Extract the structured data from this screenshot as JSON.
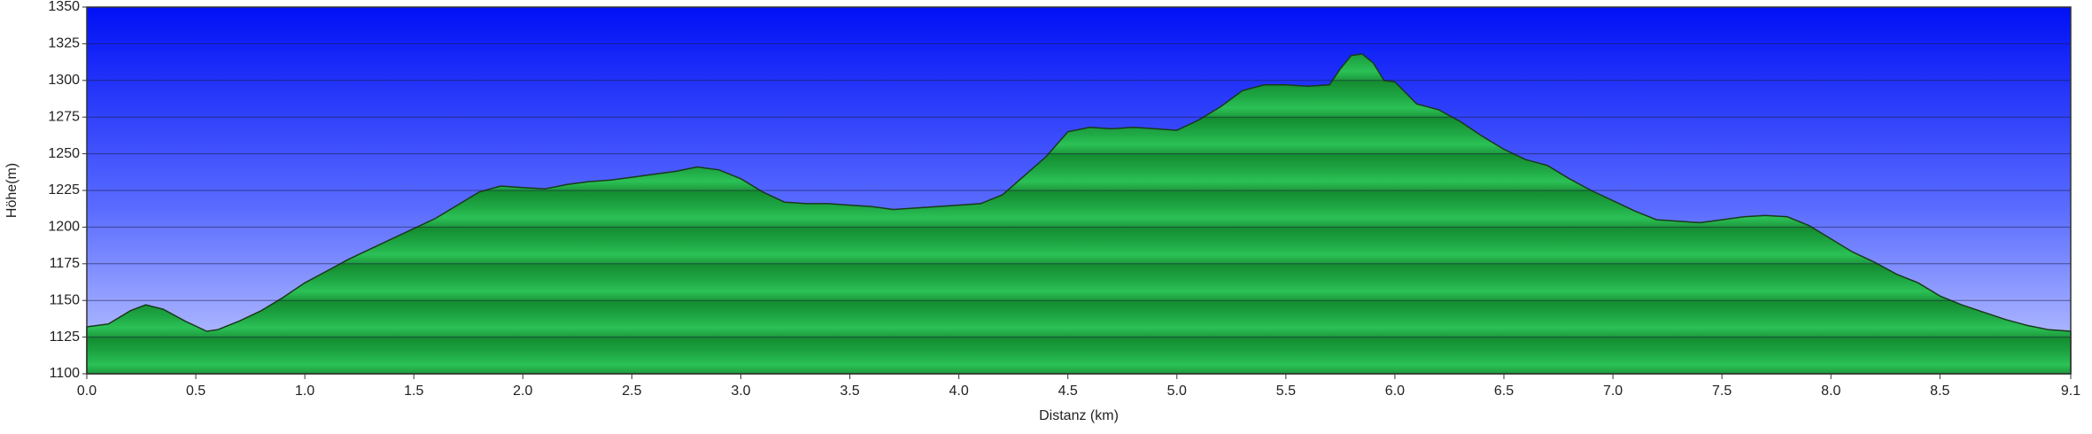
{
  "chart_data": {
    "type": "area",
    "x_label": "Distanz   (km)",
    "y_label": "Höhe(m)",
    "x": [
      0.0,
      0.1,
      0.2,
      0.27,
      0.35,
      0.45,
      0.55,
      0.6,
      0.7,
      0.8,
      0.9,
      1.0,
      1.1,
      1.2,
      1.3,
      1.4,
      1.5,
      1.6,
      1.7,
      1.8,
      1.9,
      2.0,
      2.1,
      2.2,
      2.3,
      2.4,
      2.5,
      2.6,
      2.7,
      2.8,
      2.9,
      3.0,
      3.1,
      3.2,
      3.3,
      3.4,
      3.5,
      3.6,
      3.7,
      3.8,
      3.9,
      4.0,
      4.1,
      4.2,
      4.3,
      4.4,
      4.5,
      4.6,
      4.7,
      4.8,
      4.9,
      5.0,
      5.1,
      5.2,
      5.3,
      5.4,
      5.5,
      5.6,
      5.7,
      5.75,
      5.8,
      5.85,
      5.9,
      5.95,
      6.0,
      6.1,
      6.2,
      6.3,
      6.4,
      6.5,
      6.6,
      6.7,
      6.8,
      6.9,
      7.0,
      7.1,
      7.2,
      7.3,
      7.4,
      7.5,
      7.6,
      7.7,
      7.8,
      7.9,
      8.0,
      8.1,
      8.2,
      8.3,
      8.4,
      8.5,
      8.6,
      8.7,
      8.8,
      8.9,
      9.0,
      9.1
    ],
    "values": [
      1132,
      1134,
      1143,
      1147,
      1144,
      1136,
      1129,
      1130,
      1136,
      1143,
      1152,
      1162,
      1170,
      1178,
      1185,
      1192,
      1199,
      1206,
      1215,
      1224,
      1228,
      1227,
      1226,
      1229,
      1231,
      1232,
      1234,
      1236,
      1238,
      1241,
      1239,
      1233,
      1224,
      1217,
      1216,
      1216,
      1215,
      1214,
      1212,
      1213,
      1214,
      1215,
      1216,
      1222,
      1235,
      1248,
      1265,
      1268,
      1267,
      1268,
      1267,
      1266,
      1273,
      1282,
      1293,
      1297,
      1297,
      1296,
      1297,
      1308,
      1317,
      1318,
      1312,
      1300,
      1299,
      1284,
      1280,
      1272,
      1262,
      1253,
      1246,
      1242,
      1233,
      1225,
      1218,
      1211,
      1205,
      1204,
      1203,
      1205,
      1207,
      1208,
      1207,
      1201,
      1192,
      1183,
      1176,
      1168,
      1162,
      1153,
      1147,
      1142,
      1137,
      1133,
      1130,
      1129
    ],
    "color": "#1fa845",
    "xlim": [
      0,
      9.1
    ],
    "xticks": [
      {
        "value": 0,
        "label": "0.0"
      },
      0.5,
      {
        "value": 1,
        "label": "1.0"
      },
      1.5,
      {
        "value": 2,
        "label": "2.0"
      },
      2.5,
      {
        "value": 3,
        "label": "3.0"
      },
      3.5,
      {
        "value": 4,
        "label": "4.0"
      },
      4.5,
      {
        "value": 5,
        "label": "5.0"
      },
      5.5,
      {
        "value": 6,
        "label": "6.0"
      },
      6.5,
      {
        "value": 7,
        "label": "7.0"
      },
      7.5,
      {
        "value": 8,
        "label": "8.0"
      },
      8.5,
      9.1
    ],
    "ylim": [
      1100,
      1350
    ],
    "yticks": [
      1100,
      1125,
      1150,
      1175,
      1200,
      1225,
      1250,
      1275,
      1300,
      1325,
      1350
    ],
    "grid": true
  }
}
